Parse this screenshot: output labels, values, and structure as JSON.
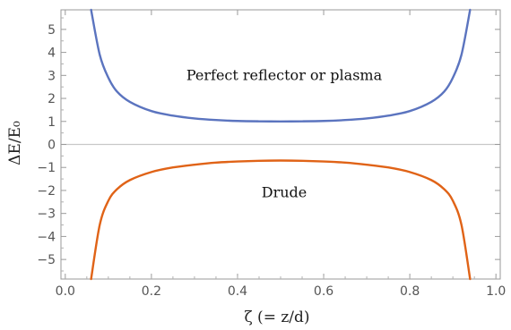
{
  "chart_data": {
    "type": "line",
    "xlabel": "ζ    (= z/d)",
    "ylabel": "ΔE/E₀",
    "xlim": [
      -0.01,
      1.01
    ],
    "ylim": [
      -5.85,
      5.85
    ],
    "x_ticks": [
      "0.0",
      "0.2",
      "0.4",
      "0.6",
      "0.8",
      "1.0"
    ],
    "x_tick_values": [
      0,
      0.2,
      0.4,
      0.6,
      0.8,
      1.0
    ],
    "y_ticks": [
      "5",
      "4",
      "3",
      "2",
      "1",
      "0",
      "−1",
      "−2",
      "−3",
      "−4",
      "−5"
    ],
    "y_tick_values": [
      5,
      4,
      3,
      2,
      1,
      0,
      -1,
      -2,
      -3,
      -4,
      -5
    ],
    "zero_line": true,
    "grid": false,
    "series": [
      {
        "color": "#5B74BF",
        "x": [
          0.06,
          0.08,
          0.1,
          0.12,
          0.15,
          0.2,
          0.25,
          0.3,
          0.35,
          0.4,
          0.45,
          0.5,
          0.55,
          0.6,
          0.65,
          0.7,
          0.75,
          0.8,
          0.85,
          0.88,
          0.9,
          0.92,
          0.94
        ],
        "y": [
          5.85,
          3.9,
          2.9,
          2.3,
          1.85,
          1.45,
          1.25,
          1.13,
          1.06,
          1.02,
          1.005,
          1.0,
          1.005,
          1.02,
          1.06,
          1.13,
          1.25,
          1.45,
          1.85,
          2.3,
          2.9,
          3.9,
          5.85
        ]
      },
      {
        "color": "#E06317",
        "x": [
          0.06,
          0.08,
          0.1,
          0.12,
          0.15,
          0.2,
          0.25,
          0.3,
          0.35,
          0.4,
          0.45,
          0.5,
          0.55,
          0.6,
          0.65,
          0.7,
          0.75,
          0.8,
          0.85,
          0.88,
          0.9,
          0.92,
          0.94
        ],
        "y": [
          -5.85,
          -3.5,
          -2.45,
          -1.95,
          -1.55,
          -1.2,
          -1.0,
          -0.88,
          -0.79,
          -0.74,
          -0.71,
          -0.7,
          -0.71,
          -0.74,
          -0.79,
          -0.88,
          -1.0,
          -1.2,
          -1.55,
          -1.95,
          -2.45,
          -3.5,
          -5.85
        ]
      }
    ],
    "annotations": [
      {
        "text": "Perfect reflector or plasma",
        "x": 0.5,
        "y": 3.0
      },
      {
        "text": "Drude",
        "x": 0.5,
        "y": -2.1
      }
    ]
  }
}
